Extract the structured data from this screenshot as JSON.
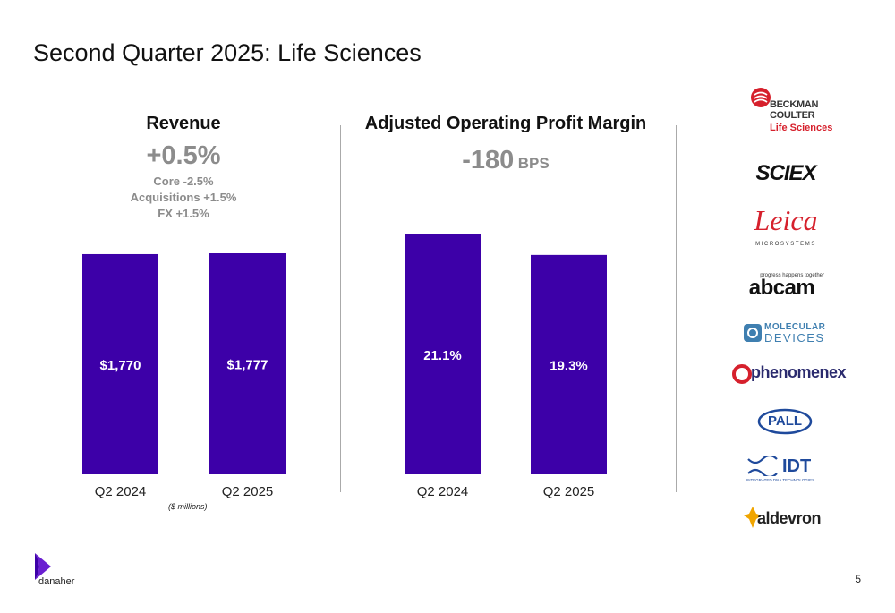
{
  "title": "Second Quarter 2025: Life Sciences",
  "colors": {
    "bar": "#3d00a8",
    "muted": "#8c8c8c"
  },
  "revenue": {
    "heading": "Revenue",
    "change": "+0.5%",
    "details": [
      "Core -2.5%",
      "Acquisitions +1.5%",
      "FX +1.5%"
    ],
    "unit_note": "($ millions)"
  },
  "margin": {
    "heading": "Adjusted Operating Profit Margin",
    "change_value": "-180",
    "change_unit": "BPS"
  },
  "chart_data": [
    {
      "type": "bar",
      "title": "Revenue",
      "categories": [
        "Q2 2024",
        "Q2 2025"
      ],
      "values": [
        1770,
        1777
      ],
      "labels": [
        "$1,770",
        "$1,777"
      ]
    },
    {
      "type": "bar",
      "title": "Adjusted Operating Profit Margin",
      "categories": [
        "Q2 2024",
        "Q2 2025"
      ],
      "values": [
        21.1,
        19.3
      ],
      "labels": [
        "21.1%",
        "19.3%"
      ]
    }
  ],
  "logos": [
    {
      "name": "beckman-coulter-logo",
      "lines": [
        "BECKMAN",
        "COULTER",
        "Life Sciences"
      ]
    },
    {
      "name": "sciex-logo",
      "lines": [
        "SCIEX"
      ]
    },
    {
      "name": "leica-logo",
      "lines": [
        "Leica",
        "MICROSYSTEMS"
      ]
    },
    {
      "name": "abcam-logo",
      "lines": [
        "progress happens together",
        "abcam"
      ]
    },
    {
      "name": "molecular-devices-logo",
      "lines": [
        "MOLECULAR",
        "DEVICES"
      ]
    },
    {
      "name": "phenomenex-logo",
      "lines": [
        "phenomenex"
      ]
    },
    {
      "name": "pall-logo",
      "lines": [
        "PALL"
      ]
    },
    {
      "name": "idt-logo",
      "lines": [
        "IDT",
        "INTEGRATED DNA TECHNOLOGIES"
      ]
    },
    {
      "name": "aldevron-logo",
      "lines": [
        "aldevron"
      ]
    }
  ],
  "footer": {
    "brand": "danaher",
    "page": "5"
  }
}
